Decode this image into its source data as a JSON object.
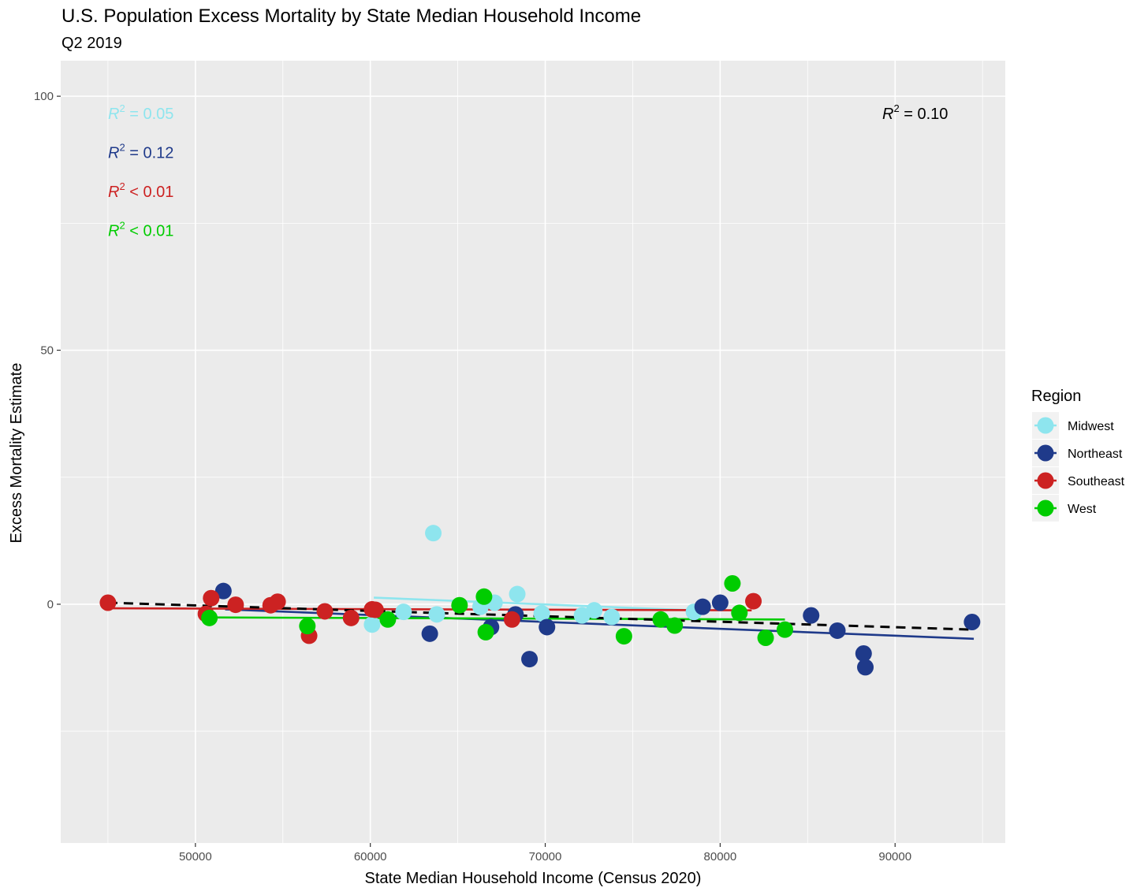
{
  "header": {
    "title": "U.S. Population Excess Mortality by State Median Household Income",
    "subtitle": "Q2 2019"
  },
  "chart_data": {
    "type": "scatter",
    "title": "U.S. Population Excess Mortality by State Median Household Income",
    "subtitle": "Q2 2019",
    "xlabel": "State Median Household Income (Census 2020)",
    "ylabel": "Excess Mortality Estimate",
    "xlim": [
      42300,
      96300
    ],
    "ylim": [
      -47,
      107
    ],
    "x_ticks": [
      50000,
      60000,
      70000,
      80000,
      90000
    ],
    "y_ticks": [
      0,
      50,
      100
    ],
    "grid": true,
    "legend": {
      "title": "Region",
      "position": "right"
    },
    "overall_fit": {
      "label": "R",
      "sup": "2",
      "rest": " = 0.10",
      "x_range": [
        45000,
        94500
      ],
      "y_at": [
        0.3,
        -5.0
      ],
      "style": "dashed",
      "color": "#000000"
    },
    "series": [
      {
        "name": "Midwest",
        "color": "#8EE5EE",
        "r2": {
          "label": "R",
          "sup": "2",
          "rest": " = 0.05"
        },
        "fit": {
          "x_range": [
            60200,
            78500
          ],
          "y_at": [
            1.3,
            -1.2
          ]
        },
        "points": [
          {
            "x": 60100,
            "y": -4.0
          },
          {
            "x": 61900,
            "y": -1.5
          },
          {
            "x": 63600,
            "y": 14.0
          },
          {
            "x": 63800,
            "y": -2.0
          },
          {
            "x": 66300,
            "y": -0.5
          },
          {
            "x": 67100,
            "y": 0.3
          },
          {
            "x": 68400,
            "y": 2.0
          },
          {
            "x": 69800,
            "y": -1.8
          },
          {
            "x": 72100,
            "y": -2.2
          },
          {
            "x": 72800,
            "y": -1.2
          },
          {
            "x": 73800,
            "y": -2.5
          },
          {
            "x": 78500,
            "y": -1.5
          }
        ]
      },
      {
        "name": "Northeast",
        "color": "#1F3A8A",
        "r2": {
          "label": "R",
          "sup": "2",
          "rest": " = 0.12"
        },
        "fit": {
          "x_range": [
            51700,
            94500
          ],
          "y_at": [
            -1.0,
            -6.8
          ]
        },
        "points": [
          {
            "x": 51600,
            "y": 2.6
          },
          {
            "x": 63400,
            "y": -5.8
          },
          {
            "x": 66900,
            "y": -4.5
          },
          {
            "x": 68300,
            "y": -2.0
          },
          {
            "x": 69100,
            "y": -10.8
          },
          {
            "x": 70100,
            "y": -4.5
          },
          {
            "x": 79000,
            "y": -0.5
          },
          {
            "x": 80000,
            "y": 0.3
          },
          {
            "x": 85200,
            "y": -2.2
          },
          {
            "x": 86700,
            "y": -5.2
          },
          {
            "x": 88200,
            "y": -9.7
          },
          {
            "x": 88300,
            "y": -12.4
          },
          {
            "x": 94400,
            "y": -3.5
          }
        ]
      },
      {
        "name": "Southeast",
        "color": "#CC2222",
        "r2": {
          "label": "R",
          "sup": "2",
          "rest": " < 0.01"
        },
        "fit": {
          "x_range": [
            45000,
            81800
          ],
          "y_at": [
            -0.8,
            -1.2
          ]
        },
        "points": [
          {
            "x": 45000,
            "y": 0.3
          },
          {
            "x": 50600,
            "y": -1.9
          },
          {
            "x": 50900,
            "y": 1.2
          },
          {
            "x": 52300,
            "y": -0.1
          },
          {
            "x": 54300,
            "y": -0.2
          },
          {
            "x": 54700,
            "y": 0.5
          },
          {
            "x": 56500,
            "y": -6.2
          },
          {
            "x": 57400,
            "y": -1.4
          },
          {
            "x": 58900,
            "y": -2.7
          },
          {
            "x": 60100,
            "y": -1.0
          },
          {
            "x": 60300,
            "y": -1.1
          },
          {
            "x": 68100,
            "y": -3.0
          },
          {
            "x": 81900,
            "y": 0.6
          }
        ]
      },
      {
        "name": "West",
        "color": "#00CC00",
        "r2": {
          "label": "R",
          "sup": "2",
          "rest": " < 0.01"
        },
        "fit": {
          "x_range": [
            50800,
            83700
          ],
          "y_at": [
            -2.6,
            -3.0
          ]
        },
        "points": [
          {
            "x": 50800,
            "y": -2.7
          },
          {
            "x": 56400,
            "y": -4.3
          },
          {
            "x": 61000,
            "y": -3.0
          },
          {
            "x": 65100,
            "y": -0.2
          },
          {
            "x": 66500,
            "y": 1.5
          },
          {
            "x": 66600,
            "y": -5.5
          },
          {
            "x": 74500,
            "y": -6.3
          },
          {
            "x": 76600,
            "y": -3.0
          },
          {
            "x": 77400,
            "y": -4.2
          },
          {
            "x": 80700,
            "y": 4.1
          },
          {
            "x": 81100,
            "y": -1.7
          },
          {
            "x": 82600,
            "y": -6.6
          },
          {
            "x": 83700,
            "y": -5.0
          }
        ]
      }
    ]
  }
}
